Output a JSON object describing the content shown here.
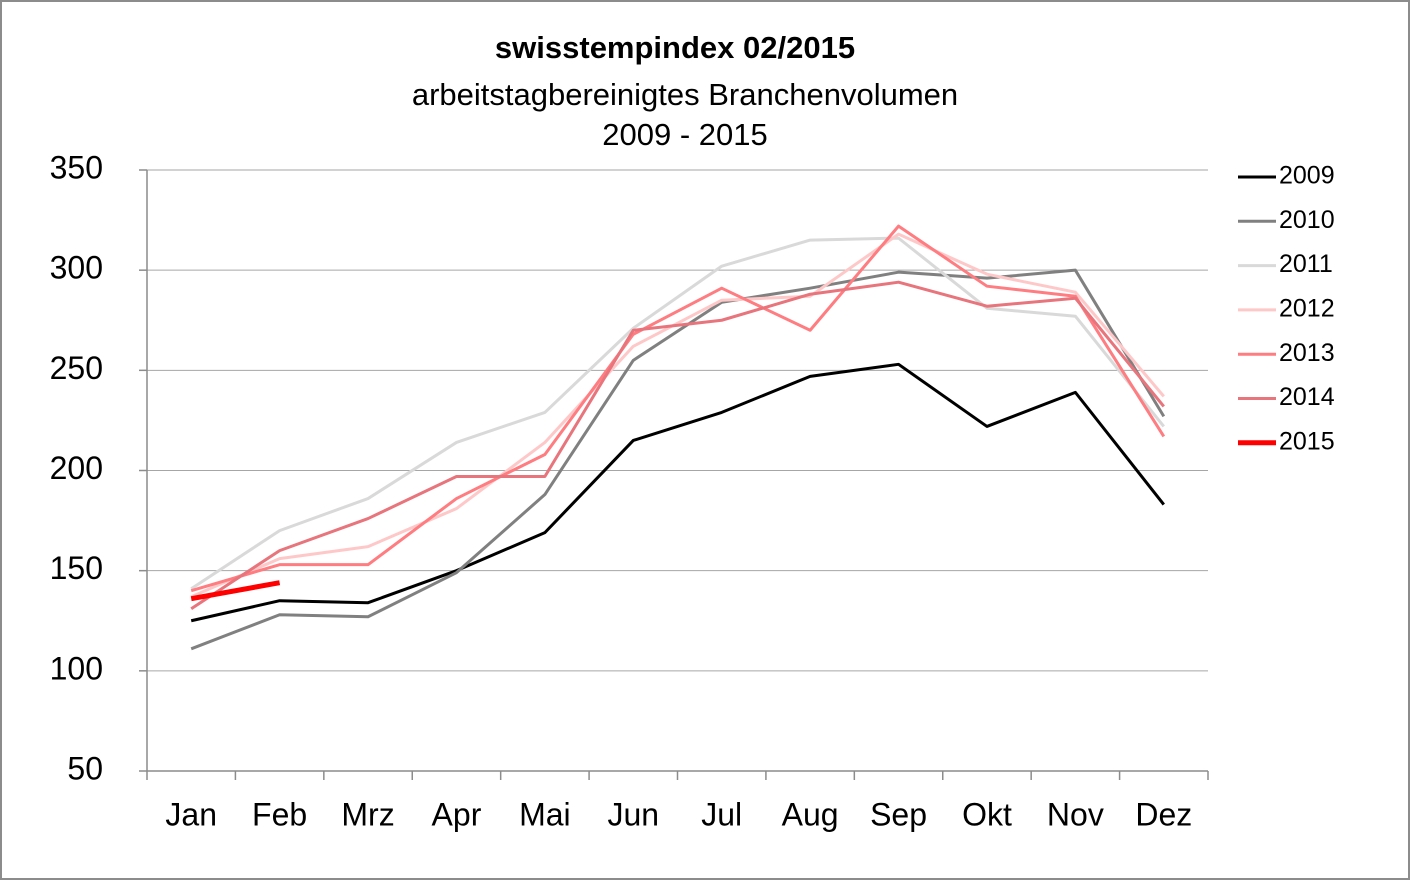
{
  "chart_data": {
    "type": "line",
    "title": "swisstempindex 02/2015",
    "subtitle": "arbeitstagbereinigtes Branchenvolumen",
    "period": "2009 - 2015",
    "categories": [
      "Jan",
      "Feb",
      "Mrz",
      "Apr",
      "Mai",
      "Jun",
      "Jul",
      "Aug",
      "Sep",
      "Okt",
      "Nov",
      "Dez"
    ],
    "ylim": [
      50,
      350
    ],
    "yticks": [
      50,
      100,
      150,
      200,
      250,
      300,
      350
    ],
    "grid": true,
    "legend": "right",
    "series": [
      {
        "name": "2009",
        "color": "#000000",
        "values": [
          125,
          135,
          134,
          150,
          169,
          215,
          229,
          247,
          253,
          222,
          239,
          183
        ]
      },
      {
        "name": "2010",
        "color": "#808080",
        "values": [
          111,
          128,
          127,
          149,
          188,
          255,
          284,
          291,
          299,
          296,
          300,
          227
        ]
      },
      {
        "name": "2011",
        "color": "#d9d9d9",
        "values": [
          141,
          170,
          186,
          214,
          229,
          271,
          302,
          315,
          316,
          281,
          277,
          222
        ]
      },
      {
        "name": "2012",
        "color": "#ffc8c8",
        "values": [
          137,
          156,
          162,
          181,
          214,
          262,
          285,
          287,
          318,
          298,
          289,
          237
        ]
      },
      {
        "name": "2013",
        "color": "#ff7c80",
        "values": [
          140,
          153,
          153,
          186,
          208,
          268,
          291,
          270,
          322,
          292,
          287,
          217
        ]
      },
      {
        "name": "2014",
        "color": "#e8747c",
        "values": [
          131,
          160,
          176,
          197,
          197,
          270,
          275,
          288,
          294,
          282,
          286,
          232
        ]
      },
      {
        "name": "2015",
        "color": "#ff0000",
        "values": [
          136,
          144,
          null,
          null,
          null,
          null,
          null,
          null,
          null,
          null,
          null,
          null
        ]
      }
    ]
  }
}
